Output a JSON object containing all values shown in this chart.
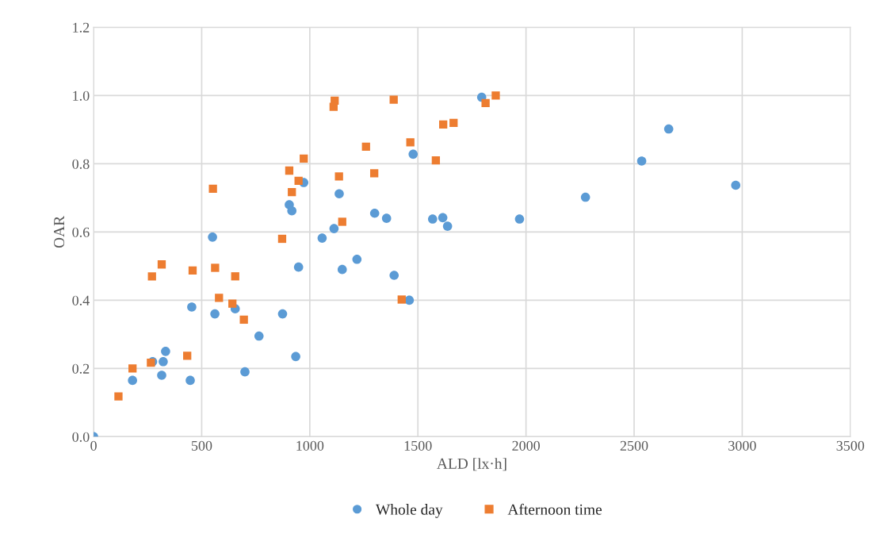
{
  "chart_data": {
    "type": "scatter",
    "xlabel": "ALD [lx·h]",
    "ylabel": "OAR",
    "xlim": [
      0,
      3500
    ],
    "xticks": [
      0,
      500,
      1000,
      1500,
      2000,
      2500,
      3000,
      3500
    ],
    "ylim": [
      0,
      1.2
    ],
    "yticks": [
      {
        "value": 0,
        "label": "0.0"
      },
      {
        "value": 0.2,
        "label": "0.2"
      },
      {
        "value": 0.4,
        "label": "0.4"
      },
      {
        "value": 0.6,
        "label": "0.6"
      },
      {
        "value": 0.8,
        "label": "0.8"
      },
      {
        "value": 1.0,
        "label": "1.0"
      },
      {
        "value": 1.2,
        "label": "1.2"
      }
    ],
    "grid": true,
    "legend": "bottom",
    "series": [
      {
        "name": "Whole day",
        "color": "#5b9bd5",
        "marker": "circle",
        "x": [
          0,
          180,
          273,
          315,
          322,
          333,
          447,
          454,
          550,
          561,
          655,
          700,
          765,
          874,
          905,
          917,
          935,
          948,
          972,
          1057,
          1112,
          1136,
          1150,
          1218,
          1300,
          1355,
          1390,
          1460,
          1478,
          1568,
          1615,
          1637,
          1795,
          1970,
          2275,
          2535,
          2660,
          2970
        ],
        "values": [
          0.0,
          0.165,
          0.22,
          0.18,
          0.22,
          0.25,
          0.165,
          0.38,
          0.585,
          0.36,
          0.375,
          0.19,
          0.295,
          0.36,
          0.68,
          0.662,
          0.235,
          0.497,
          0.745,
          0.582,
          0.61,
          0.712,
          0.49,
          0.52,
          0.655,
          0.64,
          0.473,
          0.4,
          0.828,
          0.638,
          0.642,
          0.617,
          0.995,
          0.638,
          0.702,
          0.808,
          0.902,
          0.737
        ]
      },
      {
        "name": "Afternoon time",
        "color": "#ed7d31",
        "marker": "square",
        "x": [
          115,
          180,
          265,
          270,
          315,
          433,
          458,
          552,
          562,
          580,
          642,
          655,
          695,
          872,
          905,
          917,
          948,
          972,
          1110,
          1115,
          1135,
          1150,
          1260,
          1298,
          1388,
          1425,
          1465,
          1583,
          1617,
          1665,
          1813,
          1860
        ],
        "values": [
          0.118,
          0.2,
          0.217,
          0.47,
          0.505,
          0.237,
          0.487,
          0.727,
          0.495,
          0.407,
          0.39,
          0.47,
          0.343,
          0.58,
          0.78,
          0.717,
          0.75,
          0.815,
          0.967,
          0.985,
          0.763,
          0.63,
          0.85,
          0.772,
          0.988,
          0.402,
          0.863,
          0.81,
          0.915,
          0.92,
          0.978,
          1.0
        ]
      }
    ]
  }
}
